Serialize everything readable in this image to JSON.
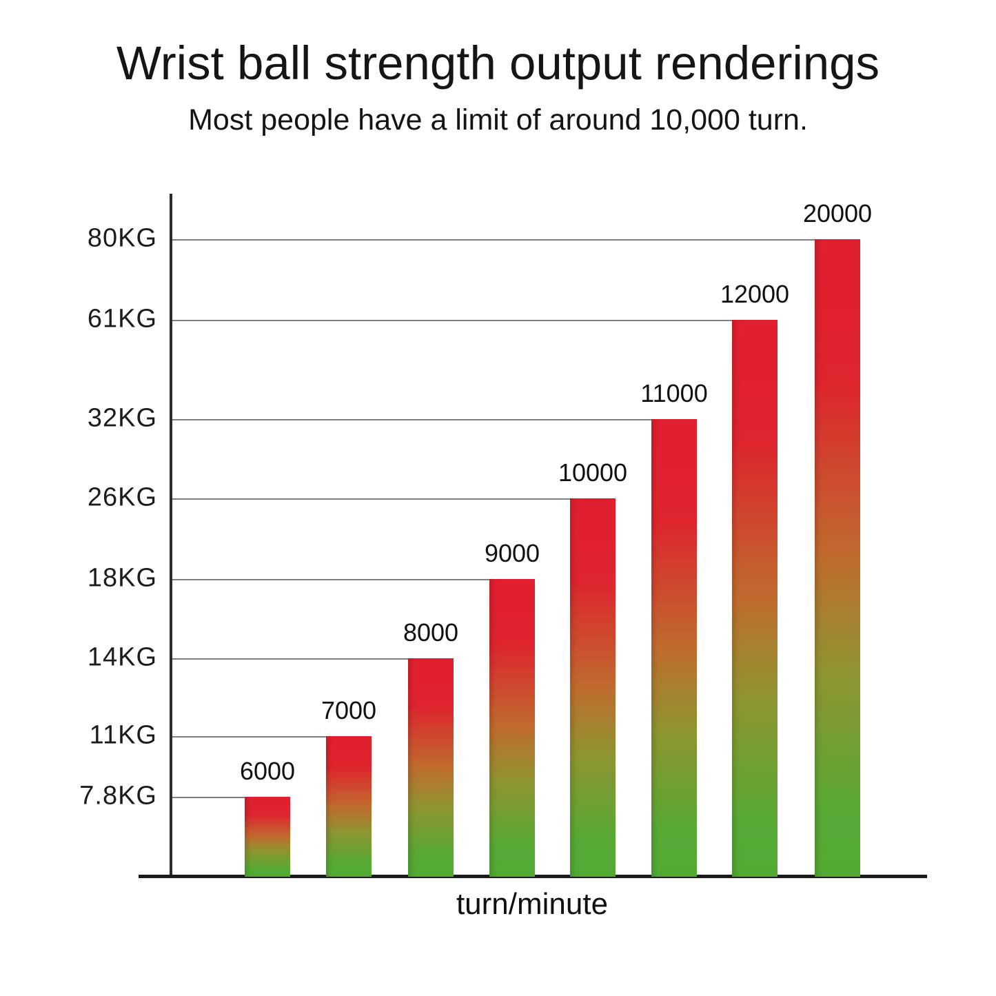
{
  "title": "Wrist ball strength output renderings",
  "subtitle": "Most people have a limit of around 10,000 turn.",
  "xlabel": "turn/minute",
  "chart_data": {
    "type": "bar",
    "title": "Wrist ball strength output renderings",
    "subtitle": "Most people have a limit of around 10,000 turn.",
    "xlabel": "turn/minute",
    "ylabel": "",
    "unit_y": "KG",
    "unit_x": "turn/minute",
    "categories": [
      "6000",
      "7000",
      "8000",
      "9000",
      "10000",
      "11000",
      "12000",
      "20000"
    ],
    "values": [
      7.8,
      11,
      14,
      18,
      26,
      32,
      61,
      80
    ],
    "y_tick_labels": [
      "80KG",
      "61KG",
      "32KG",
      "26KG",
      "18KG",
      "14KG",
      "11KG",
      "7.8KG"
    ],
    "ylim": [
      0,
      80
    ],
    "grid": "one horizontal reference line per bar, from y-axis to the bar top-left corner",
    "legend": "none",
    "bar_gradient_top_to_bottom": [
      "#e01f2f",
      "#c06c2e",
      "#8e9431",
      "#52aa33"
    ]
  },
  "colors": {
    "background": "#ffffff",
    "text": "#111111",
    "axis": "#2b2b2b",
    "gridline": "#7e7e7e",
    "bar_top_red": "#e01f2f",
    "bar_mid_orange": "#c06c2e",
    "bar_mid_olive": "#8e9431",
    "bar_bottom_green": "#52aa33"
  }
}
